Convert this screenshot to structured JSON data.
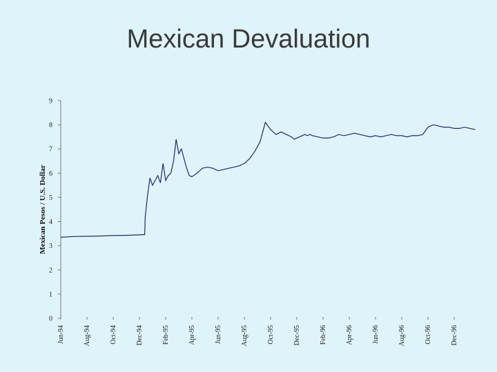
{
  "slide": {
    "title": "Mexican Devaluation"
  },
  "chart_data": {
    "type": "line",
    "title": "Mexican Devaluation",
    "xlabel": "",
    "ylabel": "Mexican Pesos / U.S. Dollar",
    "ylim": [
      0,
      9
    ],
    "yticks": [
      0,
      1,
      2,
      3,
      4,
      5,
      6,
      7,
      8,
      9
    ],
    "xticks": [
      "Jun-94",
      "Aug-94",
      "Oct-94",
      "Dec-94",
      "Feb-95",
      "Apr-95",
      "Jun-95",
      "Aug-95",
      "Oct-95",
      "Dec-95",
      "Feb-96",
      "Apr-96",
      "Jun-96",
      "Aug-96",
      "Oct-96",
      "Dec-96"
    ],
    "grid": false,
    "line_color": "#1a2a6c",
    "series": [
      {
        "x": [
          0,
          0.5,
          1.0,
          1.5,
          2.0,
          2.5,
          3.0,
          3.2,
          3.22,
          3.3,
          3.4,
          3.5,
          3.6,
          3.7,
          3.8,
          3.9,
          4.0,
          4.1,
          4.2,
          4.3,
          4.4,
          4.5,
          4.6,
          4.7,
          4.8,
          4.9,
          5.0,
          5.2,
          5.4,
          5.6,
          5.8,
          6.0,
          6.2,
          6.4,
          6.6,
          6.8,
          7.0,
          7.2,
          7.4,
          7.6,
          7.8,
          8.0,
          8.2,
          8.4,
          8.6,
          8.8,
          8.9,
          9.0,
          9.1,
          9.2,
          9.3,
          9.4,
          9.5,
          9.6,
          9.8,
          10.0,
          10.2,
          10.4,
          10.6,
          10.8,
          11.0,
          11.2,
          11.4,
          11.6,
          11.8,
          12.0,
          12.2,
          12.4,
          12.6,
          12.8,
          13.0,
          13.2,
          13.4,
          13.6,
          13.8,
          14.0,
          14.2,
          14.4,
          14.6,
          14.8,
          15.0,
          15.2,
          15.4,
          15.6,
          15.8
        ],
        "values": [
          3.35,
          3.38,
          3.39,
          3.4,
          3.42,
          3.43,
          3.45,
          3.46,
          4.2,
          5.0,
          5.8,
          5.5,
          5.7,
          5.9,
          5.6,
          6.4,
          5.7,
          5.9,
          6.0,
          6.5,
          7.4,
          6.8,
          7.0,
          6.6,
          6.2,
          5.9,
          5.85,
          6.0,
          6.2,
          6.25,
          6.2,
          6.1,
          6.15,
          6.2,
          6.25,
          6.3,
          6.4,
          6.6,
          6.9,
          7.3,
          8.1,
          7.8,
          7.6,
          7.7,
          7.6,
          7.5,
          7.4,
          7.45,
          7.5,
          7.55,
          7.6,
          7.55,
          7.6,
          7.55,
          7.5,
          7.45,
          7.45,
          7.5,
          7.6,
          7.55,
          7.6,
          7.65,
          7.6,
          7.55,
          7.5,
          7.55,
          7.5,
          7.55,
          7.6,
          7.55,
          7.55,
          7.5,
          7.55,
          7.55,
          7.6,
          7.9,
          8.0,
          7.95,
          7.9,
          7.9,
          7.85,
          7.85,
          7.9,
          7.85,
          7.8
        ]
      }
    ]
  }
}
